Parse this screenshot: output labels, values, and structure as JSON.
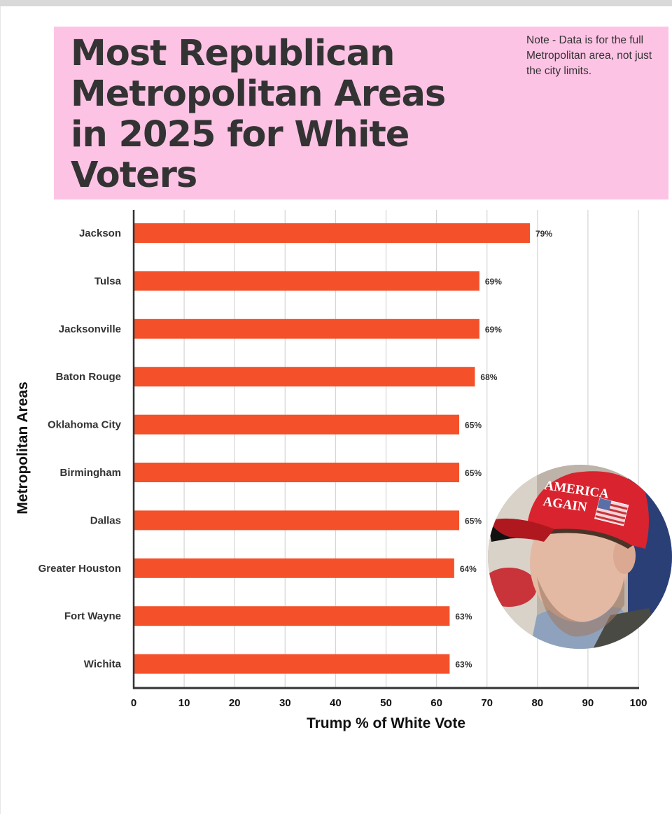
{
  "header": {
    "title": "Most Republican Metropolitan Areas in 2025 for White Voters",
    "title_lines": [
      "Most Republican",
      "Metropolitan Areas",
      "in 2025 for White",
      "Voters"
    ],
    "note": "Note - Data is for the full Metropolitan area, not just the city limits.",
    "background": "#fdc3e4"
  },
  "photo": {
    "description_icon": "portrait-photo",
    "cap_text_lines": [
      "AMERICA",
      "AGAIN"
    ]
  },
  "colors": {
    "bar": "#f4502a",
    "gridline": "#d6d6d6",
    "axis": "#333333"
  },
  "chart_data": {
    "type": "bar",
    "orientation": "horizontal",
    "title": "Most Republican Metropolitan Areas in 2025 for White Voters",
    "xlabel": "Trump % of White Vote",
    "ylabel": "Metropolitan Areas",
    "xlim": [
      0,
      100
    ],
    "xticks": [
      0,
      10,
      20,
      30,
      40,
      50,
      60,
      70,
      80,
      90,
      100
    ],
    "grid": true,
    "categories": [
      "Jackson",
      "Tulsa",
      "Jacksonville",
      "Baton Rouge",
      "Oklahoma City",
      "Birmingham",
      "Dallas",
      "Greater Houston",
      "Fort Wayne",
      "Wichita"
    ],
    "values": [
      78.5,
      68.5,
      68.5,
      67.6,
      64.5,
      64.5,
      64.5,
      63.5,
      62.6,
      62.6
    ],
    "value_labels": [
      "79%",
      "69%",
      "69%",
      "68%",
      "65%",
      "65%",
      "65%",
      "64%",
      "63%",
      "63%"
    ]
  }
}
